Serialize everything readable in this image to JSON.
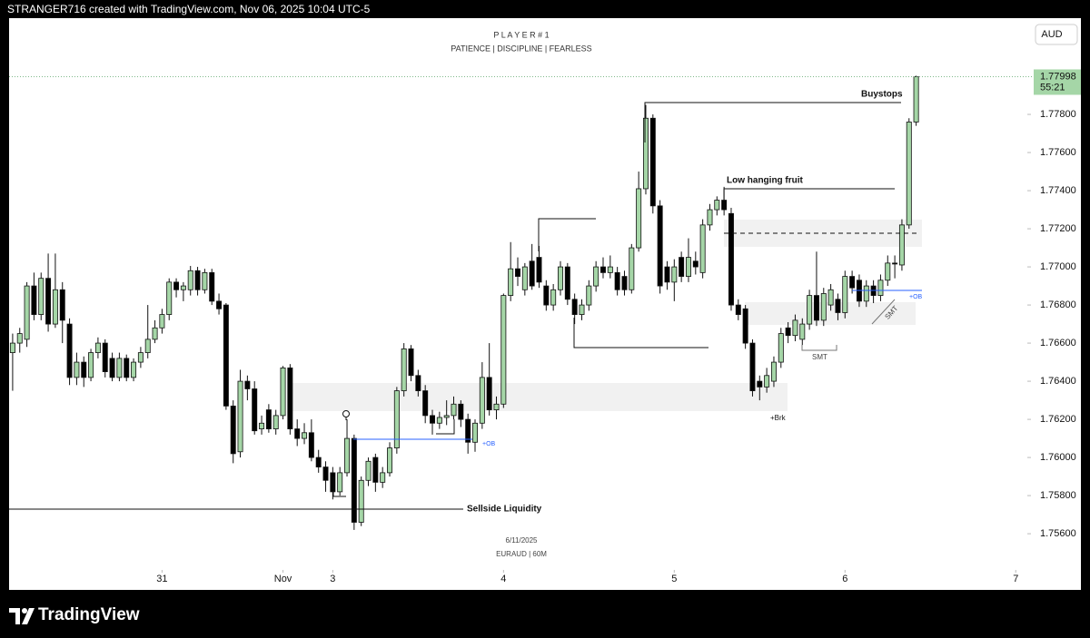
{
  "header": {
    "caption": "STRANGER716 created with TradingView.com, Nov 06, 2025 10:04 UTC-5"
  },
  "footer": {
    "brand": "TradingView"
  },
  "chart_data": {
    "type": "candlestick",
    "title": "P L A Y E R # 1",
    "subtitle": "PATIENCE  |  DISCIPLINE  |  FEARLESS",
    "date_label": "6/11/2025",
    "symbol": "EURAUD | 60M",
    "currency": "AUD",
    "up_color": "#a5d6a7",
    "down_color": "#000000",
    "grid": false,
    "open": [
      1.7655,
      1.766,
      1.7662,
      1.769,
      1.7675,
      1.7694,
      1.767,
      1.7688,
      1.767,
      1.7642,
      1.765,
      1.7642,
      1.7655,
      1.766,
      1.7652,
      1.7642,
      1.7652,
      1.7642,
      1.765,
      1.7655,
      1.7662,
      1.7668,
      1.7675,
      1.7692,
      1.7688,
      1.7688,
      1.7698,
      1.7688,
      1.7697,
      1.7682,
      1.768,
      1.7627,
      1.7603,
      1.764,
      1.7636,
      1.7615,
      1.7625,
      1.7615,
      1.7622,
      1.7647,
      1.7615,
      1.761,
      1.7613,
      1.76,
      1.7595,
      1.7592,
      1.7582,
      1.7592,
      1.761,
      1.7566,
      1.7588,
      1.76,
      1.7587,
      1.7592,
      1.7605,
      1.7635,
      1.7657,
      1.7643,
      1.7635,
      1.7622,
      1.7618,
      1.7621,
      1.7622,
      1.7628,
      1.762,
      1.7608,
      1.7618,
      1.7642,
      1.7625,
      1.7628,
      1.7685,
      1.7699,
      1.7688,
      1.7703,
      1.7705,
      1.769,
      1.768,
      1.7688,
      1.77,
      1.7683,
      1.7675,
      1.768,
      1.769,
      1.77,
      1.7697,
      1.7697,
      1.7695,
      1.7688,
      1.771,
      1.7741,
      1.7778,
      1.7732,
      1.77,
      1.7692,
      1.7705,
      1.7695,
      1.7703,
      1.7697,
      1.7722,
      1.773,
      1.7735,
      1.7728,
      1.768,
      1.7678,
      1.766,
      1.764,
      1.7637,
      1.764,
      1.765,
      1.7668,
      1.7664,
      1.7662,
      1.767,
      1.7685,
      1.7672,
      1.768,
      1.7683,
      1.7676,
      1.7695,
      1.7693,
      1.7682,
      1.769,
      1.7685,
      1.7693,
      1.7702,
      1.7701,
      1.7722,
      1.7776
    ],
    "high": [
      1.7665,
      1.7668,
      1.7692,
      1.7697,
      1.7697,
      1.7707,
      1.7707,
      1.7692,
      1.7673,
      1.7655,
      1.7653,
      1.7657,
      1.7663,
      1.7662,
      1.7655,
      1.7655,
      1.7654,
      1.7652,
      1.7658,
      1.768,
      1.7672,
      1.7678,
      1.7694,
      1.7694,
      1.7692,
      1.77005,
      1.77,
      1.7699,
      1.7699,
      1.7686,
      1.7681,
      1.763,
      1.7646,
      1.7643,
      1.764,
      1.7622,
      1.7628,
      1.7625,
      1.7648,
      1.7649,
      1.762,
      1.7618,
      1.762,
      1.7604,
      1.7598,
      1.7595,
      1.7595,
      1.762,
      1.7612,
      1.759,
      1.76,
      1.7602,
      1.7595,
      1.7608,
      1.7637,
      1.766,
      1.7659,
      1.7646,
      1.7638,
      1.7625,
      1.7624,
      1.763,
      1.7632,
      1.763,
      1.7623,
      1.762,
      1.765,
      1.766,
      1.7632,
      1.7686,
      1.7713,
      1.7705,
      1.7702,
      1.7712,
      1.7711,
      1.7693,
      1.7691,
      1.7703,
      1.7702,
      1.7686,
      1.7683,
      1.7693,
      1.7703,
      1.7705,
      1.7706,
      1.77,
      1.7698,
      1.7712,
      1.775,
      1.7785,
      1.778,
      1.7735,
      1.7703,
      1.7704,
      1.7708,
      1.7715,
      1.7708,
      1.7725,
      1.7733,
      1.7737,
      1.7742,
      1.7731,
      1.7683,
      1.768,
      1.7662,
      1.7643,
      1.7647,
      1.7653,
      1.7668,
      1.7671,
      1.7675,
      1.7673,
      1.7688,
      1.7708,
      1.7689,
      1.7691,
      1.7686,
      1.7698,
      1.7698,
      1.7696,
      1.7693,
      1.7693,
      1.7696,
      1.7706,
      1.7706,
      1.7725,
      1.7778,
      1.78003
    ],
    "low": [
      1.7635,
      1.7655,
      1.7658,
      1.7672,
      1.7672,
      1.7666,
      1.7668,
      1.766,
      1.7638,
      1.7638,
      1.7637,
      1.764,
      1.7652,
      1.7642,
      1.764,
      1.764,
      1.764,
      1.764,
      1.7647,
      1.7652,
      1.766,
      1.7665,
      1.7672,
      1.7684,
      1.7682,
      1.7685,
      1.7685,
      1.7686,
      1.768,
      1.7675,
      1.7625,
      1.7597,
      1.76,
      1.763,
      1.7612,
      1.7612,
      1.7613,
      1.7612,
      1.762,
      1.7612,
      1.7606,
      1.7607,
      1.7598,
      1.7592,
      1.7582,
      1.7578,
      1.758,
      1.759,
      1.7562,
      1.7564,
      1.7585,
      1.7582,
      1.7584,
      1.759,
      1.7602,
      1.7632,
      1.764,
      1.7632,
      1.7618,
      1.7612,
      1.7615,
      1.7617,
      1.762,
      1.7616,
      1.7602,
      1.7603,
      1.7615,
      1.7622,
      1.762,
      1.7626,
      1.7682,
      1.769,
      1.7685,
      1.7688,
      1.7689,
      1.7677,
      1.7677,
      1.7685,
      1.768,
      1.767,
      1.7672,
      1.7677,
      1.7687,
      1.7694,
      1.7694,
      1.7685,
      1.7685,
      1.7686,
      1.7708,
      1.7738,
      1.7728,
      1.7686,
      1.7688,
      1.7682,
      1.7692,
      1.7692,
      1.7696,
      1.7694,
      1.7719,
      1.7727,
      1.7727,
      1.7677,
      1.7672,
      1.7657,
      1.7632,
      1.763,
      1.7634,
      1.7637,
      1.7647,
      1.766,
      1.7661,
      1.7659,
      1.7667,
      1.7669,
      1.7669,
      1.7677,
      1.7672,
      1.7673,
      1.7686,
      1.7679,
      1.7679,
      1.7681,
      1.7682,
      1.769,
      1.7694,
      1.7698,
      1.772,
      1.7774
    ],
    "close": [
      1.766,
      1.7665,
      1.769,
      1.7675,
      1.7694,
      1.767,
      1.7688,
      1.7672,
      1.7642,
      1.765,
      1.7642,
      1.7655,
      1.766,
      1.7645,
      1.7642,
      1.7652,
      1.7642,
      1.765,
      1.7655,
      1.7662,
      1.7668,
      1.7675,
      1.7692,
      1.7688,
      1.769,
      1.7698,
      1.7688,
      1.7697,
      1.7682,
      1.7678,
      1.7627,
      1.7602,
      1.764,
      1.7636,
      1.7614,
      1.7618,
      1.7615,
      1.7622,
      1.7647,
      1.7615,
      1.761,
      1.7613,
      1.76,
      1.7595,
      1.7588,
      1.7582,
      1.7592,
      1.761,
      1.7566,
      1.7588,
      1.7598,
      1.7587,
      1.7592,
      1.7605,
      1.7635,
      1.7657,
      1.7643,
      1.7635,
      1.7622,
      1.7618,
      1.7621,
      1.7622,
      1.7628,
      1.762,
      1.7608,
      1.7618,
      1.7642,
      1.7625,
      1.7628,
      1.7685,
      1.7699,
      1.7695,
      1.77,
      1.769,
      1.7692,
      1.768,
      1.7688,
      1.77,
      1.7683,
      1.7675,
      1.768,
      1.769,
      1.77,
      1.7697,
      1.77,
      1.7688,
      1.7688,
      1.771,
      1.7741,
      1.7778,
      1.7732,
      1.769,
      1.7692,
      1.77,
      1.7695,
      1.7705,
      1.77,
      1.7722,
      1.773,
      1.7735,
      1.773,
      1.768,
      1.7675,
      1.766,
      1.7635,
      1.7637,
      1.7643,
      1.765,
      1.7665,
      1.7664,
      1.7672,
      1.767,
      1.7685,
      1.7672,
      1.7686,
      1.7688,
      1.7676,
      1.7695,
      1.7689,
      1.7682,
      1.769,
      1.7685,
      1.7693,
      1.7702,
      1.77015,
      1.7722,
      1.7776,
      1.77998
    ],
    "xlim": [
      -0.5,
      142.5
    ],
    "xticks": [
      {
        "value": 21,
        "label": "31"
      },
      {
        "value": 38,
        "label": "Nov"
      },
      {
        "value": 45,
        "label": "3"
      },
      {
        "value": 69,
        "label": "4"
      },
      {
        "value": 93,
        "label": "5"
      },
      {
        "value": 117,
        "label": "6"
      },
      {
        "value": 141,
        "label": "7"
      }
    ],
    "ylim": [
      1.7541,
      1.78305
    ],
    "yticks": [
      {
        "value": 1.756,
        "label": "1.75600"
      },
      {
        "value": 1.758,
        "label": "1.75800"
      },
      {
        "value": 1.76,
        "label": "1.76000"
      },
      {
        "value": 1.762,
        "label": "1.76200"
      },
      {
        "value": 1.764,
        "label": "1.76400"
      },
      {
        "value": 1.766,
        "label": "1.76600"
      },
      {
        "value": 1.768,
        "label": "1.76800"
      },
      {
        "value": 1.77,
        "label": "1.77000"
      },
      {
        "value": 1.772,
        "label": "1.77200"
      },
      {
        "value": 1.774,
        "label": "1.77400"
      },
      {
        "value": 1.776,
        "label": "1.77600"
      },
      {
        "value": 1.778,
        "label": "1.77800"
      }
    ],
    "last_price": {
      "value": 1.77998,
      "label": "1.77998"
    },
    "countdown": "55:21",
    "annotations": {
      "buystops": "Buystops",
      "low_hanging_fruit": "Low hanging fruit",
      "sellside": "Sellside Liquidity",
      "brk": "+Brk",
      "smt_1": "SMT",
      "smt_2": "SMT",
      "ob_1": "+OB",
      "ob_2": "+OB"
    }
  }
}
